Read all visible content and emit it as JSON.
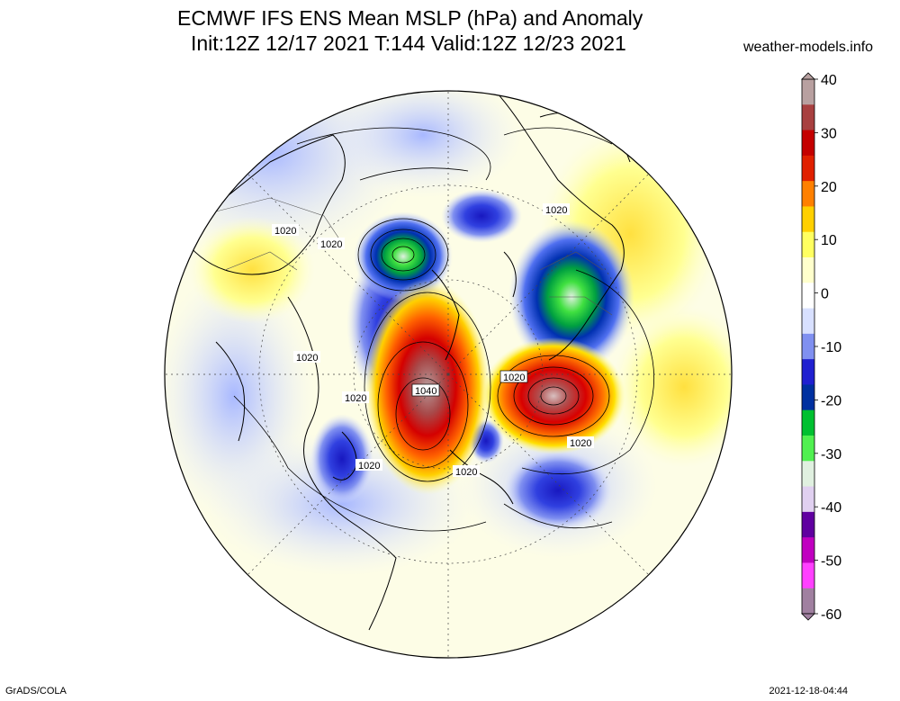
{
  "header": {
    "title_line1": "ECMWF IFS ENS Mean MSLP (hPa) and Anomaly",
    "title_line2": "Init:12Z 12/17 2021  T:144 Valid:12Z 12/23 2021",
    "site": "weather-models.info"
  },
  "footer": {
    "left": "GrADS/COLA",
    "right": "2021-12-18-04:44"
  },
  "colorbar": {
    "labels": [
      "40",
      "30",
      "20",
      "10",
      "0",
      "-10",
      "-20",
      "-30",
      "-40",
      "-50",
      "-60"
    ],
    "colors": [
      "#b8a0a0",
      "#a84040",
      "#c40000",
      "#e02000",
      "#ff8000",
      "#ffd000",
      "#ffff60",
      "#ffffcc",
      "#ffffff",
      "#d8e0ff",
      "#8090f0",
      "#2020d0",
      "#0030a0",
      "#00c030",
      "#50f050",
      "#e0f0e0",
      "#e0d0f0",
      "#6000a0",
      "#c000c0",
      "#ff40ff",
      "#a080a0"
    ]
  },
  "contour_labels": [
    "1020",
    "1020",
    "1020",
    "1020",
    "1020",
    "1040",
    "1020",
    "1020",
    "1020",
    "1020",
    "1020"
  ]
}
